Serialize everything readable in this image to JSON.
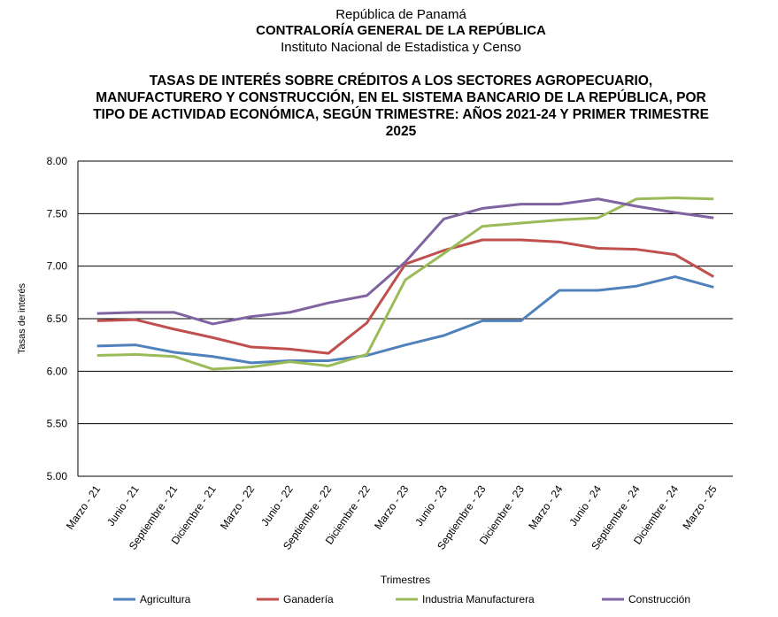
{
  "header": {
    "line1": "República de Panamá",
    "line2": "CONTRALORÍA GENERAL DE LA REPÚBLICA",
    "line3": "Instituto  Nacional de Estadistica y Censo"
  },
  "chart_data": {
    "type": "line",
    "title": "TASAS  DE INTERÉS SOBRE  CRÉDITOS A LOS SECTORES  AGROPECUARIO, MANUFACTURERO Y CONSTRUCCIÓN, EN EL SISTEMA BANCARIO DE LA REPÚBLICA, POR TIPO DE ACTIVIDAD ECONÓMICA,  SEGÚN TRIMESTRE: AÑOS 2021-24 Y PRIMER TRIMESTRE 2025",
    "xlabel": "Trimestres",
    "ylabel": "Tasas de interés",
    "ylim": [
      5,
      8
    ],
    "yticks": [
      "5.00",
      "5.50",
      "6.00",
      "6.50",
      "7.00",
      "7.50",
      "8.00"
    ],
    "categories": [
      "Marzo - 21",
      "Junio - 21",
      "Septiembre - 21",
      "Diciembre - 21",
      "Marzo - 22",
      "Junio - 22",
      "Septiembre - 22",
      "Diciembre - 22",
      "Marzo - 23",
      "Junio - 23",
      "Septiembre - 23",
      "Diciembre - 23",
      "Marzo - 24",
      "Junio - 24",
      "Septiembre - 24",
      "Diciembre - 24",
      "Marzo - 25"
    ],
    "legend": "bottom",
    "series": [
      {
        "name": "Agricultura",
        "color": "#4f81bd",
        "values": [
          6.24,
          6.25,
          6.18,
          6.14,
          6.08,
          6.1,
          6.1,
          6.15,
          6.25,
          6.34,
          6.48,
          6.48,
          6.77,
          6.77,
          6.81,
          6.9,
          6.8
        ]
      },
      {
        "name": "Ganadería",
        "color": "#c0504d",
        "values": [
          6.48,
          6.49,
          6.4,
          6.32,
          6.23,
          6.21,
          6.17,
          6.46,
          7.02,
          7.15,
          7.25,
          7.25,
          7.23,
          7.17,
          7.16,
          7.11,
          6.9
        ]
      },
      {
        "name": "Industria Manufacturera",
        "color": "#9bbb59",
        "values": [
          6.15,
          6.16,
          6.14,
          6.02,
          6.04,
          6.09,
          6.05,
          6.16,
          6.87,
          7.12,
          7.38,
          7.41,
          7.44,
          7.46,
          7.64,
          7.65,
          7.64
        ]
      },
      {
        "name": "Construcción",
        "color": "#8064a2",
        "values": [
          6.55,
          6.56,
          6.56,
          6.45,
          6.52,
          6.56,
          6.65,
          6.72,
          7.04,
          7.45,
          7.55,
          7.59,
          7.59,
          7.64,
          7.57,
          7.51,
          7.46
        ]
      }
    ]
  }
}
